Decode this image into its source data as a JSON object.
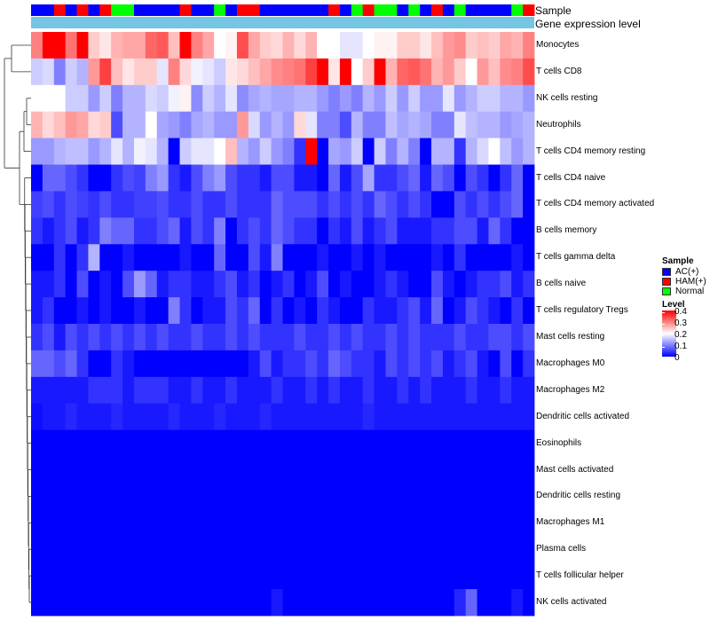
{
  "chart_data": {
    "type": "heatmap",
    "title": "",
    "column_annotations": [
      {
        "name": "Sample"
      },
      {
        "name": "Gene expression level"
      }
    ],
    "sample_groups": [
      "AC(+)",
      "AC(+)",
      "HAM(+)",
      "AC(+)",
      "HAM(+)",
      "AC(+)",
      "HAM(+)",
      "Normal",
      "Normal",
      "AC(+)",
      "AC(+)",
      "AC(+)",
      "AC(+)",
      "HAM(+)",
      "AC(+)",
      "AC(+)",
      "Normal",
      "AC(+)",
      "HAM(+)",
      "HAM(+)",
      "AC(+)",
      "AC(+)",
      "AC(+)",
      "AC(+)",
      "AC(+)",
      "AC(+)",
      "HAM(+)",
      "AC(+)",
      "Normal",
      "HAM(+)",
      "Normal",
      "Normal",
      "AC(+)",
      "Normal",
      "AC(+)",
      "HAM(+)",
      "AC(+)",
      "Normal",
      "AC(+)",
      "AC(+)",
      "AC(+)",
      "AC(+)",
      "Normal",
      "HAM(+)"
    ],
    "rows": [
      "Monocytes",
      "T cells CD8",
      "NK cells resting",
      "Neutrophils",
      "T cells CD4 memory resting",
      "T cells CD4 naive",
      "T cells CD4 memory activated",
      "B cells memory",
      "T cells gamma delta",
      "B cells naive",
      "T cells regulatory  Tregs",
      "Mast cells resting",
      "Macrophages M0",
      "Macrophages M2",
      "Dendritic cells activated",
      "Eosinophils",
      "Mast cells activated",
      "Dendritic cells resting",
      "Macrophages M1",
      "Plasma cells",
      "T cells follicular helper",
      "NK cells activated"
    ],
    "values": [
      [
        0.3,
        0.4,
        0.4,
        0.31,
        0.4,
        0.24,
        0.22,
        0.26,
        0.27,
        0.27,
        0.32,
        0.33,
        0.25,
        0.4,
        0.3,
        0.27,
        0.2,
        0.21,
        0.34,
        0.27,
        0.24,
        0.23,
        0.26,
        0.23,
        0.26,
        0.2,
        0.2,
        0.18,
        0.18,
        0.2,
        0.21,
        0.21,
        0.24,
        0.24,
        0.22,
        0.25,
        0.28,
        0.29,
        0.24,
        0.25,
        0.24,
        0.27,
        0.26,
        0.3
      ],
      [
        0.16,
        0.17,
        0.1,
        0.16,
        0.14,
        0.28,
        0.35,
        0.25,
        0.22,
        0.24,
        0.24,
        0.18,
        0.3,
        0.23,
        0.19,
        0.18,
        0.16,
        0.22,
        0.23,
        0.25,
        0.27,
        0.29,
        0.3,
        0.31,
        0.35,
        0.4,
        0.22,
        0.4,
        0.2,
        0.24,
        0.4,
        0.26,
        0.32,
        0.33,
        0.31,
        0.26,
        0.28,
        0.24,
        0.2,
        0.28,
        0.25,
        0.29,
        0.3,
        0.34
      ],
      [
        0.2,
        0.2,
        0.2,
        0.16,
        0.16,
        0.12,
        0.16,
        0.1,
        0.14,
        0.14,
        0.17,
        0.16,
        0.19,
        0.21,
        0.11,
        0.16,
        0.14,
        0.18,
        0.11,
        0.13,
        0.14,
        0.13,
        0.13,
        0.14,
        0.14,
        0.12,
        0.1,
        0.12,
        0.1,
        0.14,
        0.12,
        0.16,
        0.12,
        0.16,
        0.12,
        0.12,
        0.18,
        0.12,
        0.14,
        0.16,
        0.16,
        0.14,
        0.14,
        0.12
      ],
      [
        0.26,
        0.23,
        0.25,
        0.28,
        0.27,
        0.23,
        0.24,
        0.06,
        0.14,
        0.14,
        0.2,
        0.13,
        0.12,
        0.1,
        0.13,
        0.14,
        0.12,
        0.12,
        0.28,
        0.17,
        0.12,
        0.14,
        0.12,
        0.23,
        0.18,
        0.1,
        0.1,
        0.06,
        0.14,
        0.1,
        0.1,
        0.15,
        0.13,
        0.14,
        0.13,
        0.1,
        0.1,
        0.18,
        0.15,
        0.14,
        0.14,
        0.12,
        0.13,
        0.14
      ],
      [
        0.12,
        0.12,
        0.14,
        0.15,
        0.15,
        0.12,
        0.14,
        0.18,
        0.14,
        0.19,
        0.18,
        0.14,
        0.0,
        0.16,
        0.18,
        0.18,
        0.2,
        0.25,
        0.14,
        0.12,
        0.16,
        0.12,
        0.1,
        0.04,
        0.4,
        0.0,
        0.13,
        0.12,
        0.16,
        0.0,
        0.16,
        0.1,
        0.14,
        0.1,
        0.0,
        0.14,
        0.14,
        0.04,
        0.14,
        0.17,
        0.2,
        0.15,
        0.12,
        0.14
      ],
      [
        0.0,
        0.08,
        0.08,
        0.06,
        0.04,
        0.0,
        0.0,
        0.04,
        0.06,
        0.05,
        0.1,
        0.12,
        0.04,
        0.02,
        0.06,
        0.1,
        0.12,
        0.06,
        0.04,
        0.04,
        0.02,
        0.06,
        0.06,
        0.02,
        0.02,
        0.0,
        0.08,
        0.02,
        0.06,
        0.13,
        0.04,
        0.04,
        0.06,
        0.08,
        0.02,
        0.08,
        0.06,
        0.0,
        0.06,
        0.04,
        0.0,
        0.04,
        0.08,
        0.0
      ],
      [
        0.05,
        0.06,
        0.04,
        0.06,
        0.05,
        0.04,
        0.06,
        0.04,
        0.04,
        0.05,
        0.05,
        0.06,
        0.04,
        0.04,
        0.06,
        0.04,
        0.04,
        0.06,
        0.04,
        0.04,
        0.04,
        0.08,
        0.06,
        0.06,
        0.06,
        0.04,
        0.06,
        0.04,
        0.06,
        0.04,
        0.08,
        0.06,
        0.04,
        0.06,
        0.04,
        0.0,
        0.0,
        0.06,
        0.04,
        0.06,
        0.04,
        0.06,
        0.08,
        0.0
      ],
      [
        0.04,
        0.02,
        0.04,
        0.06,
        0.02,
        0.04,
        0.1,
        0.08,
        0.08,
        0.04,
        0.04,
        0.06,
        0.08,
        0.02,
        0.06,
        0.04,
        0.1,
        0.0,
        0.04,
        0.06,
        0.04,
        0.08,
        0.06,
        0.04,
        0.04,
        0.0,
        0.04,
        0.02,
        0.06,
        0.02,
        0.04,
        0.06,
        0.02,
        0.02,
        0.02,
        0.04,
        0.04,
        0.06,
        0.06,
        0.02,
        0.08,
        0.04,
        0.0,
        0.0
      ],
      [
        0.0,
        0.0,
        0.04,
        0.0,
        0.04,
        0.14,
        0.0,
        0.0,
        0.02,
        0.0,
        0.0,
        0.0,
        0.0,
        0.02,
        0.0,
        0.0,
        0.08,
        0.0,
        0.0,
        0.06,
        0.02,
        0.1,
        0.0,
        0.0,
        0.0,
        0.02,
        0.0,
        0.0,
        0.02,
        0.0,
        0.02,
        0.0,
        0.0,
        0.0,
        0.0,
        0.02,
        0.0,
        0.04,
        0.0,
        0.0,
        0.0,
        0.0,
        0.02,
        0.0
      ],
      [
        0.02,
        0.02,
        0.04,
        0.0,
        0.06,
        0.0,
        0.02,
        0.0,
        0.06,
        0.12,
        0.08,
        0.02,
        0.04,
        0.04,
        0.02,
        0.02,
        0.04,
        0.06,
        0.02,
        0.04,
        0.0,
        0.02,
        0.04,
        0.0,
        0.02,
        0.06,
        0.0,
        0.02,
        0.0,
        0.0,
        0.02,
        0.04,
        0.02,
        0.0,
        0.0,
        0.06,
        0.02,
        0.0,
        0.02,
        0.04,
        0.04,
        0.06,
        0.02,
        0.04
      ],
      [
        0.02,
        0.04,
        0.0,
        0.0,
        0.02,
        0.0,
        0.02,
        0.0,
        0.0,
        0.02,
        0.0,
        0.0,
        0.1,
        0.04,
        0.0,
        0.02,
        0.02,
        0.06,
        0.04,
        0.08,
        0.0,
        0.04,
        0.0,
        0.02,
        0.0,
        0.04,
        0.02,
        0.0,
        0.0,
        0.04,
        0.02,
        0.02,
        0.04,
        0.06,
        0.02,
        0.08,
        0.0,
        0.02,
        0.06,
        0.04,
        0.02,
        0.0,
        0.04,
        0.0
      ],
      [
        0.04,
        0.06,
        0.02,
        0.06,
        0.04,
        0.06,
        0.04,
        0.06,
        0.04,
        0.06,
        0.04,
        0.06,
        0.04,
        0.04,
        0.06,
        0.04,
        0.04,
        0.06,
        0.04,
        0.06,
        0.04,
        0.04,
        0.04,
        0.06,
        0.04,
        0.04,
        0.06,
        0.04,
        0.06,
        0.04,
        0.04,
        0.06,
        0.04,
        0.06,
        0.04,
        0.04,
        0.04,
        0.06,
        0.04,
        0.04,
        0.06,
        0.06,
        0.04,
        0.06
      ],
      [
        0.08,
        0.08,
        0.06,
        0.08,
        0.04,
        0.0,
        0.0,
        0.04,
        0.02,
        0.0,
        0.0,
        0.0,
        0.0,
        0.0,
        0.0,
        0.0,
        0.0,
        0.0,
        0.0,
        0.02,
        0.06,
        0.02,
        0.04,
        0.04,
        0.06,
        0.04,
        0.08,
        0.06,
        0.04,
        0.04,
        0.02,
        0.06,
        0.04,
        0.06,
        0.04,
        0.06,
        0.02,
        0.04,
        0.06,
        0.02,
        0.0,
        0.06,
        0.0,
        0.04
      ],
      [
        0.02,
        0.02,
        0.02,
        0.02,
        0.02,
        0.04,
        0.04,
        0.04,
        0.02,
        0.04,
        0.04,
        0.04,
        0.02,
        0.02,
        0.04,
        0.02,
        0.02,
        0.04,
        0.02,
        0.02,
        0.02,
        0.04,
        0.02,
        0.02,
        0.04,
        0.02,
        0.04,
        0.02,
        0.02,
        0.04,
        0.02,
        0.02,
        0.04,
        0.02,
        0.04,
        0.02,
        0.02,
        0.02,
        0.04,
        0.02,
        0.02,
        0.04,
        0.02,
        0.02
      ],
      [
        0.01,
        0.02,
        0.02,
        0.03,
        0.02,
        0.02,
        0.02,
        0.03,
        0.02,
        0.02,
        0.02,
        0.02,
        0.03,
        0.02,
        0.02,
        0.02,
        0.03,
        0.02,
        0.02,
        0.02,
        0.03,
        0.02,
        0.02,
        0.02,
        0.02,
        0.02,
        0.02,
        0.02,
        0.02,
        0.03,
        0.02,
        0.02,
        0.02,
        0.02,
        0.02,
        0.02,
        0.02,
        0.02,
        0.02,
        0.02,
        0.02,
        0.02,
        0.02,
        0.02
      ],
      [
        0.0,
        0.0,
        0.0,
        0.0,
        0.0,
        0.0,
        0.0,
        0.0,
        0.0,
        0.0,
        0.0,
        0.0,
        0.0,
        0.0,
        0.0,
        0.0,
        0.0,
        0.0,
        0.0,
        0.0,
        0.0,
        0.0,
        0.0,
        0.0,
        0.0,
        0.0,
        0.0,
        0.0,
        0.0,
        0.0,
        0.0,
        0.0,
        0.0,
        0.0,
        0.0,
        0.0,
        0.0,
        0.0,
        0.0,
        0.0,
        0.0,
        0.0,
        0.0,
        0.0
      ],
      [
        0.0,
        0.0,
        0.0,
        0.0,
        0.0,
        0.0,
        0.0,
        0.0,
        0.0,
        0.0,
        0.0,
        0.0,
        0.0,
        0.0,
        0.0,
        0.0,
        0.0,
        0.0,
        0.0,
        0.0,
        0.0,
        0.0,
        0.0,
        0.0,
        0.0,
        0.0,
        0.0,
        0.0,
        0.0,
        0.0,
        0.0,
        0.0,
        0.0,
        0.0,
        0.0,
        0.0,
        0.0,
        0.0,
        0.0,
        0.0,
        0.0,
        0.0,
        0.0,
        0.0
      ],
      [
        0.0,
        0.0,
        0.0,
        0.0,
        0.0,
        0.0,
        0.0,
        0.0,
        0.0,
        0.0,
        0.0,
        0.0,
        0.0,
        0.0,
        0.0,
        0.0,
        0.0,
        0.0,
        0.0,
        0.0,
        0.0,
        0.0,
        0.0,
        0.0,
        0.0,
        0.0,
        0.0,
        0.0,
        0.0,
        0.0,
        0.0,
        0.0,
        0.0,
        0.0,
        0.0,
        0.0,
        0.0,
        0.0,
        0.0,
        0.0,
        0.0,
        0.0,
        0.0,
        0.0
      ],
      [
        0.0,
        0.0,
        0.0,
        0.0,
        0.0,
        0.0,
        0.0,
        0.0,
        0.0,
        0.0,
        0.0,
        0.0,
        0.0,
        0.0,
        0.0,
        0.0,
        0.0,
        0.0,
        0.0,
        0.0,
        0.0,
        0.0,
        0.0,
        0.0,
        0.0,
        0.0,
        0.0,
        0.0,
        0.0,
        0.0,
        0.0,
        0.0,
        0.0,
        0.0,
        0.0,
        0.0,
        0.0,
        0.0,
        0.0,
        0.0,
        0.0,
        0.0,
        0.0,
        0.0
      ],
      [
        0.0,
        0.0,
        0.0,
        0.0,
        0.0,
        0.0,
        0.0,
        0.0,
        0.0,
        0.0,
        0.0,
        0.0,
        0.0,
        0.0,
        0.0,
        0.0,
        0.0,
        0.0,
        0.0,
        0.0,
        0.0,
        0.0,
        0.0,
        0.0,
        0.0,
        0.0,
        0.0,
        0.0,
        0.0,
        0.0,
        0.0,
        0.0,
        0.0,
        0.0,
        0.0,
        0.0,
        0.0,
        0.0,
        0.0,
        0.0,
        0.0,
        0.0,
        0.0,
        0.0
      ],
      [
        0.0,
        0.0,
        0.0,
        0.0,
        0.0,
        0.0,
        0.0,
        0.0,
        0.0,
        0.0,
        0.0,
        0.0,
        0.0,
        0.0,
        0.0,
        0.0,
        0.0,
        0.0,
        0.0,
        0.0,
        0.0,
        0.0,
        0.0,
        0.0,
        0.0,
        0.0,
        0.0,
        0.0,
        0.0,
        0.0,
        0.0,
        0.0,
        0.0,
        0.0,
        0.0,
        0.0,
        0.0,
        0.0,
        0.0,
        0.0,
        0.0,
        0.0,
        0.0,
        0.0
      ],
      [
        0.0,
        0.0,
        0.0,
        0.0,
        0.0,
        0.0,
        0.0,
        0.0,
        0.0,
        0.0,
        0.0,
        0.0,
        0.0,
        0.0,
        0.0,
        0.0,
        0.0,
        0.0,
        0.0,
        0.0,
        0.0,
        0.02,
        0.0,
        0.0,
        0.0,
        0.0,
        0.0,
        0.0,
        0.0,
        0.0,
        0.0,
        0.0,
        0.0,
        0.0,
        0.0,
        0.0,
        0.0,
        0.03,
        0.08,
        0.0,
        0.0,
        0.0,
        0.02,
        0.0
      ]
    ],
    "color_scale": {
      "range": [
        0,
        0.4
      ],
      "colors": [
        "#0000ff",
        "#ffffff",
        "#ff0000"
      ]
    },
    "legend": {
      "sample": {
        "title": "Sample",
        "items": [
          {
            "label": "AC(+)",
            "color": "#0000ff"
          },
          {
            "label": "HAM(+)",
            "color": "#ff0000"
          },
          {
            "label": "Normal",
            "color": "#00ff00"
          }
        ]
      },
      "level": {
        "title": "Level",
        "ticks": [
          "0.4",
          "0.3",
          "0.2",
          "0.1",
          "0"
        ]
      }
    },
    "annotation_color": "#75c5e5",
    "placement": "legend at right"
  }
}
